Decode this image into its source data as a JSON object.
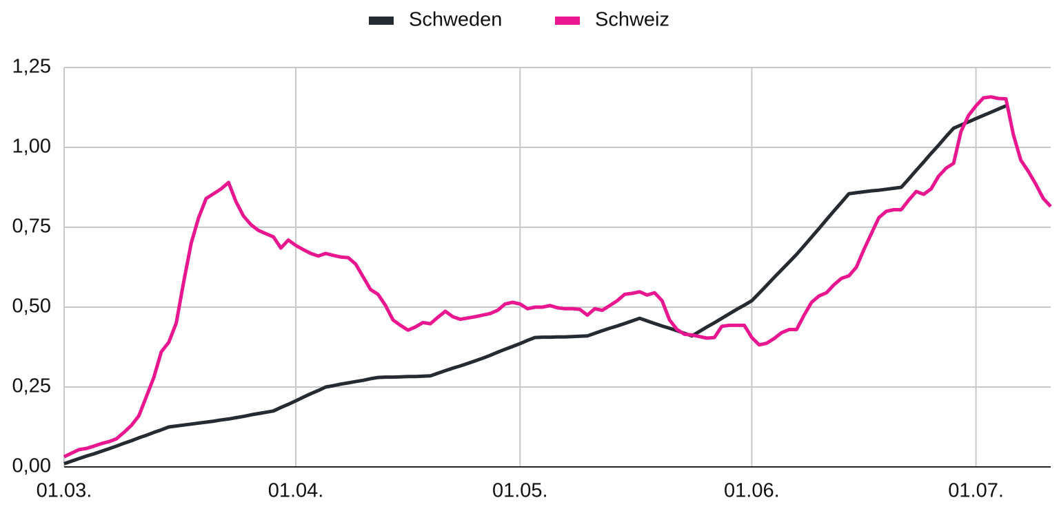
{
  "chart_data": {
    "type": "line",
    "x": [
      "01.03.",
      "02.03.",
      "03.03.",
      "04.03.",
      "05.03.",
      "06.03.",
      "07.03.",
      "08.03.",
      "09.03.",
      "10.03.",
      "11.03.",
      "12.03.",
      "13.03.",
      "14.03.",
      "15.03.",
      "16.03.",
      "17.03.",
      "18.03.",
      "19.03.",
      "20.03.",
      "21.03.",
      "22.03.",
      "23.03.",
      "24.03.",
      "25.03.",
      "26.03.",
      "27.03.",
      "28.03.",
      "29.03.",
      "30.03.",
      "31.03.",
      "01.04.",
      "02.04.",
      "03.04.",
      "04.04.",
      "05.04.",
      "06.04.",
      "07.04.",
      "08.04.",
      "09.04.",
      "10.04.",
      "11.04.",
      "12.04.",
      "13.04.",
      "14.04.",
      "15.04.",
      "16.04.",
      "17.04.",
      "18.04.",
      "19.04.",
      "20.04.",
      "21.04.",
      "22.04.",
      "23.04.",
      "24.04.",
      "25.04.",
      "26.04.",
      "27.04.",
      "28.04.",
      "29.04.",
      "30.04.",
      "01.05.",
      "02.05.",
      "03.05.",
      "04.05.",
      "05.05.",
      "06.05.",
      "07.05.",
      "08.05.",
      "09.05.",
      "10.05.",
      "11.05.",
      "12.05.",
      "13.05.",
      "14.05.",
      "15.05.",
      "16.05.",
      "17.05.",
      "18.05.",
      "19.05.",
      "20.05.",
      "21.05.",
      "22.05.",
      "23.05.",
      "24.05.",
      "25.05.",
      "26.05.",
      "27.05.",
      "28.05.",
      "29.05.",
      "30.05.",
      "31.05.",
      "01.06.",
      "02.06.",
      "03.06.",
      "04.06.",
      "05.06.",
      "06.06.",
      "07.06.",
      "08.06.",
      "09.06.",
      "10.06.",
      "11.06.",
      "12.06.",
      "13.06.",
      "14.06.",
      "15.06.",
      "16.06.",
      "17.06.",
      "18.06.",
      "19.06.",
      "20.06.",
      "21.06.",
      "22.06.",
      "23.06.",
      "24.06.",
      "25.06.",
      "26.06.",
      "27.06.",
      "28.06.",
      "29.06.",
      "30.06.",
      "01.07.",
      "02.07.",
      "03.07.",
      "04.07.",
      "05.07.",
      "06.07.",
      "07.07.",
      "08.07.",
      "09.07.",
      "10.07.",
      "11.07."
    ],
    "series": [
      {
        "name": "Schweden",
        "color": "#262a31",
        "values": [
          0.01,
          0.018,
          0.026,
          0.034,
          0.041,
          0.049,
          0.057,
          0.065,
          0.074,
          0.082,
          0.091,
          0.099,
          0.108,
          0.116,
          0.125,
          0.128,
          0.131,
          0.134,
          0.137,
          0.14,
          0.143,
          0.147,
          0.15,
          0.154,
          0.158,
          0.163,
          0.167,
          0.171,
          0.175,
          0.186,
          0.196,
          0.207,
          0.218,
          0.229,
          0.239,
          0.25,
          0.254,
          0.259,
          0.263,
          0.267,
          0.271,
          0.276,
          0.28,
          0.281,
          0.281,
          0.282,
          0.283,
          0.283,
          0.284,
          0.285,
          0.293,
          0.301,
          0.309,
          0.316,
          0.324,
          0.332,
          0.34,
          0.349,
          0.359,
          0.368,
          0.377,
          0.386,
          0.396,
          0.405,
          0.406,
          0.406,
          0.407,
          0.407,
          0.408,
          0.409,
          0.41,
          0.418,
          0.426,
          0.434,
          0.441,
          0.449,
          0.457,
          0.465,
          0.457,
          0.449,
          0.441,
          0.434,
          0.426,
          0.418,
          0.41,
          0.424,
          0.438,
          0.451,
          0.465,
          0.479,
          0.493,
          0.506,
          0.52,
          0.544,
          0.568,
          0.593,
          0.617,
          0.641,
          0.665,
          0.692,
          0.719,
          0.746,
          0.774,
          0.801,
          0.828,
          0.855,
          0.858,
          0.861,
          0.864,
          0.866,
          0.869,
          0.872,
          0.875,
          0.901,
          0.928,
          0.954,
          0.981,
          1.007,
          1.034,
          1.06,
          1.07,
          1.08,
          1.09,
          1.1,
          1.11,
          1.12,
          1.13,
          null,
          null,
          null,
          null,
          null,
          null
        ]
      },
      {
        "name": "Schweiz",
        "color": "#e8168f",
        "values": [
          0.032,
          0.043,
          0.054,
          0.058,
          0.065,
          0.073,
          0.079,
          0.088,
          0.108,
          0.13,
          0.16,
          0.22,
          0.28,
          0.36,
          0.39,
          0.45,
          0.58,
          0.7,
          0.78,
          0.84,
          0.855,
          0.87,
          0.89,
          0.83,
          0.785,
          0.758,
          0.74,
          0.73,
          0.72,
          0.685,
          0.71,
          0.693,
          0.68,
          0.668,
          0.66,
          0.668,
          0.662,
          0.657,
          0.655,
          0.635,
          0.595,
          0.555,
          0.54,
          0.505,
          0.46,
          0.443,
          0.428,
          0.438,
          0.452,
          0.448,
          0.468,
          0.487,
          0.47,
          0.462,
          0.466,
          0.47,
          0.475,
          0.48,
          0.49,
          0.51,
          0.515,
          0.51,
          0.495,
          0.5,
          0.5,
          0.505,
          0.498,
          0.495,
          0.495,
          0.493,
          0.475,
          0.495,
          0.49,
          0.505,
          0.52,
          0.54,
          0.543,
          0.548,
          0.538,
          0.545,
          0.52,
          0.46,
          0.43,
          0.415,
          0.413,
          0.408,
          0.403,
          0.405,
          0.44,
          0.443,
          0.443,
          0.443,
          0.405,
          0.382,
          0.387,
          0.402,
          0.42,
          0.43,
          0.43,
          0.475,
          0.515,
          0.535,
          0.545,
          0.57,
          0.59,
          0.598,
          0.625,
          0.68,
          0.73,
          0.78,
          0.8,
          0.805,
          0.805,
          0.835,
          0.862,
          0.853,
          0.87,
          0.91,
          0.935,
          0.95,
          1.05,
          1.1,
          1.13,
          1.155,
          1.158,
          1.153,
          1.152,
          1.04,
          0.96,
          0.925,
          0.885,
          0.84,
          0.815
        ]
      }
    ],
    "ylim": [
      0,
      1.25
    ],
    "yticks": [
      {
        "value": 0,
        "label": "0,00"
      },
      {
        "value": 0.25,
        "label": "0,25"
      },
      {
        "value": 0.5,
        "label": "0,50"
      },
      {
        "value": 0.75,
        "label": "0,75"
      },
      {
        "value": 1,
        "label": "1,00"
      },
      {
        "value": 1.25,
        "label": "1,25"
      }
    ],
    "grid": true,
    "legend": "top"
  }
}
